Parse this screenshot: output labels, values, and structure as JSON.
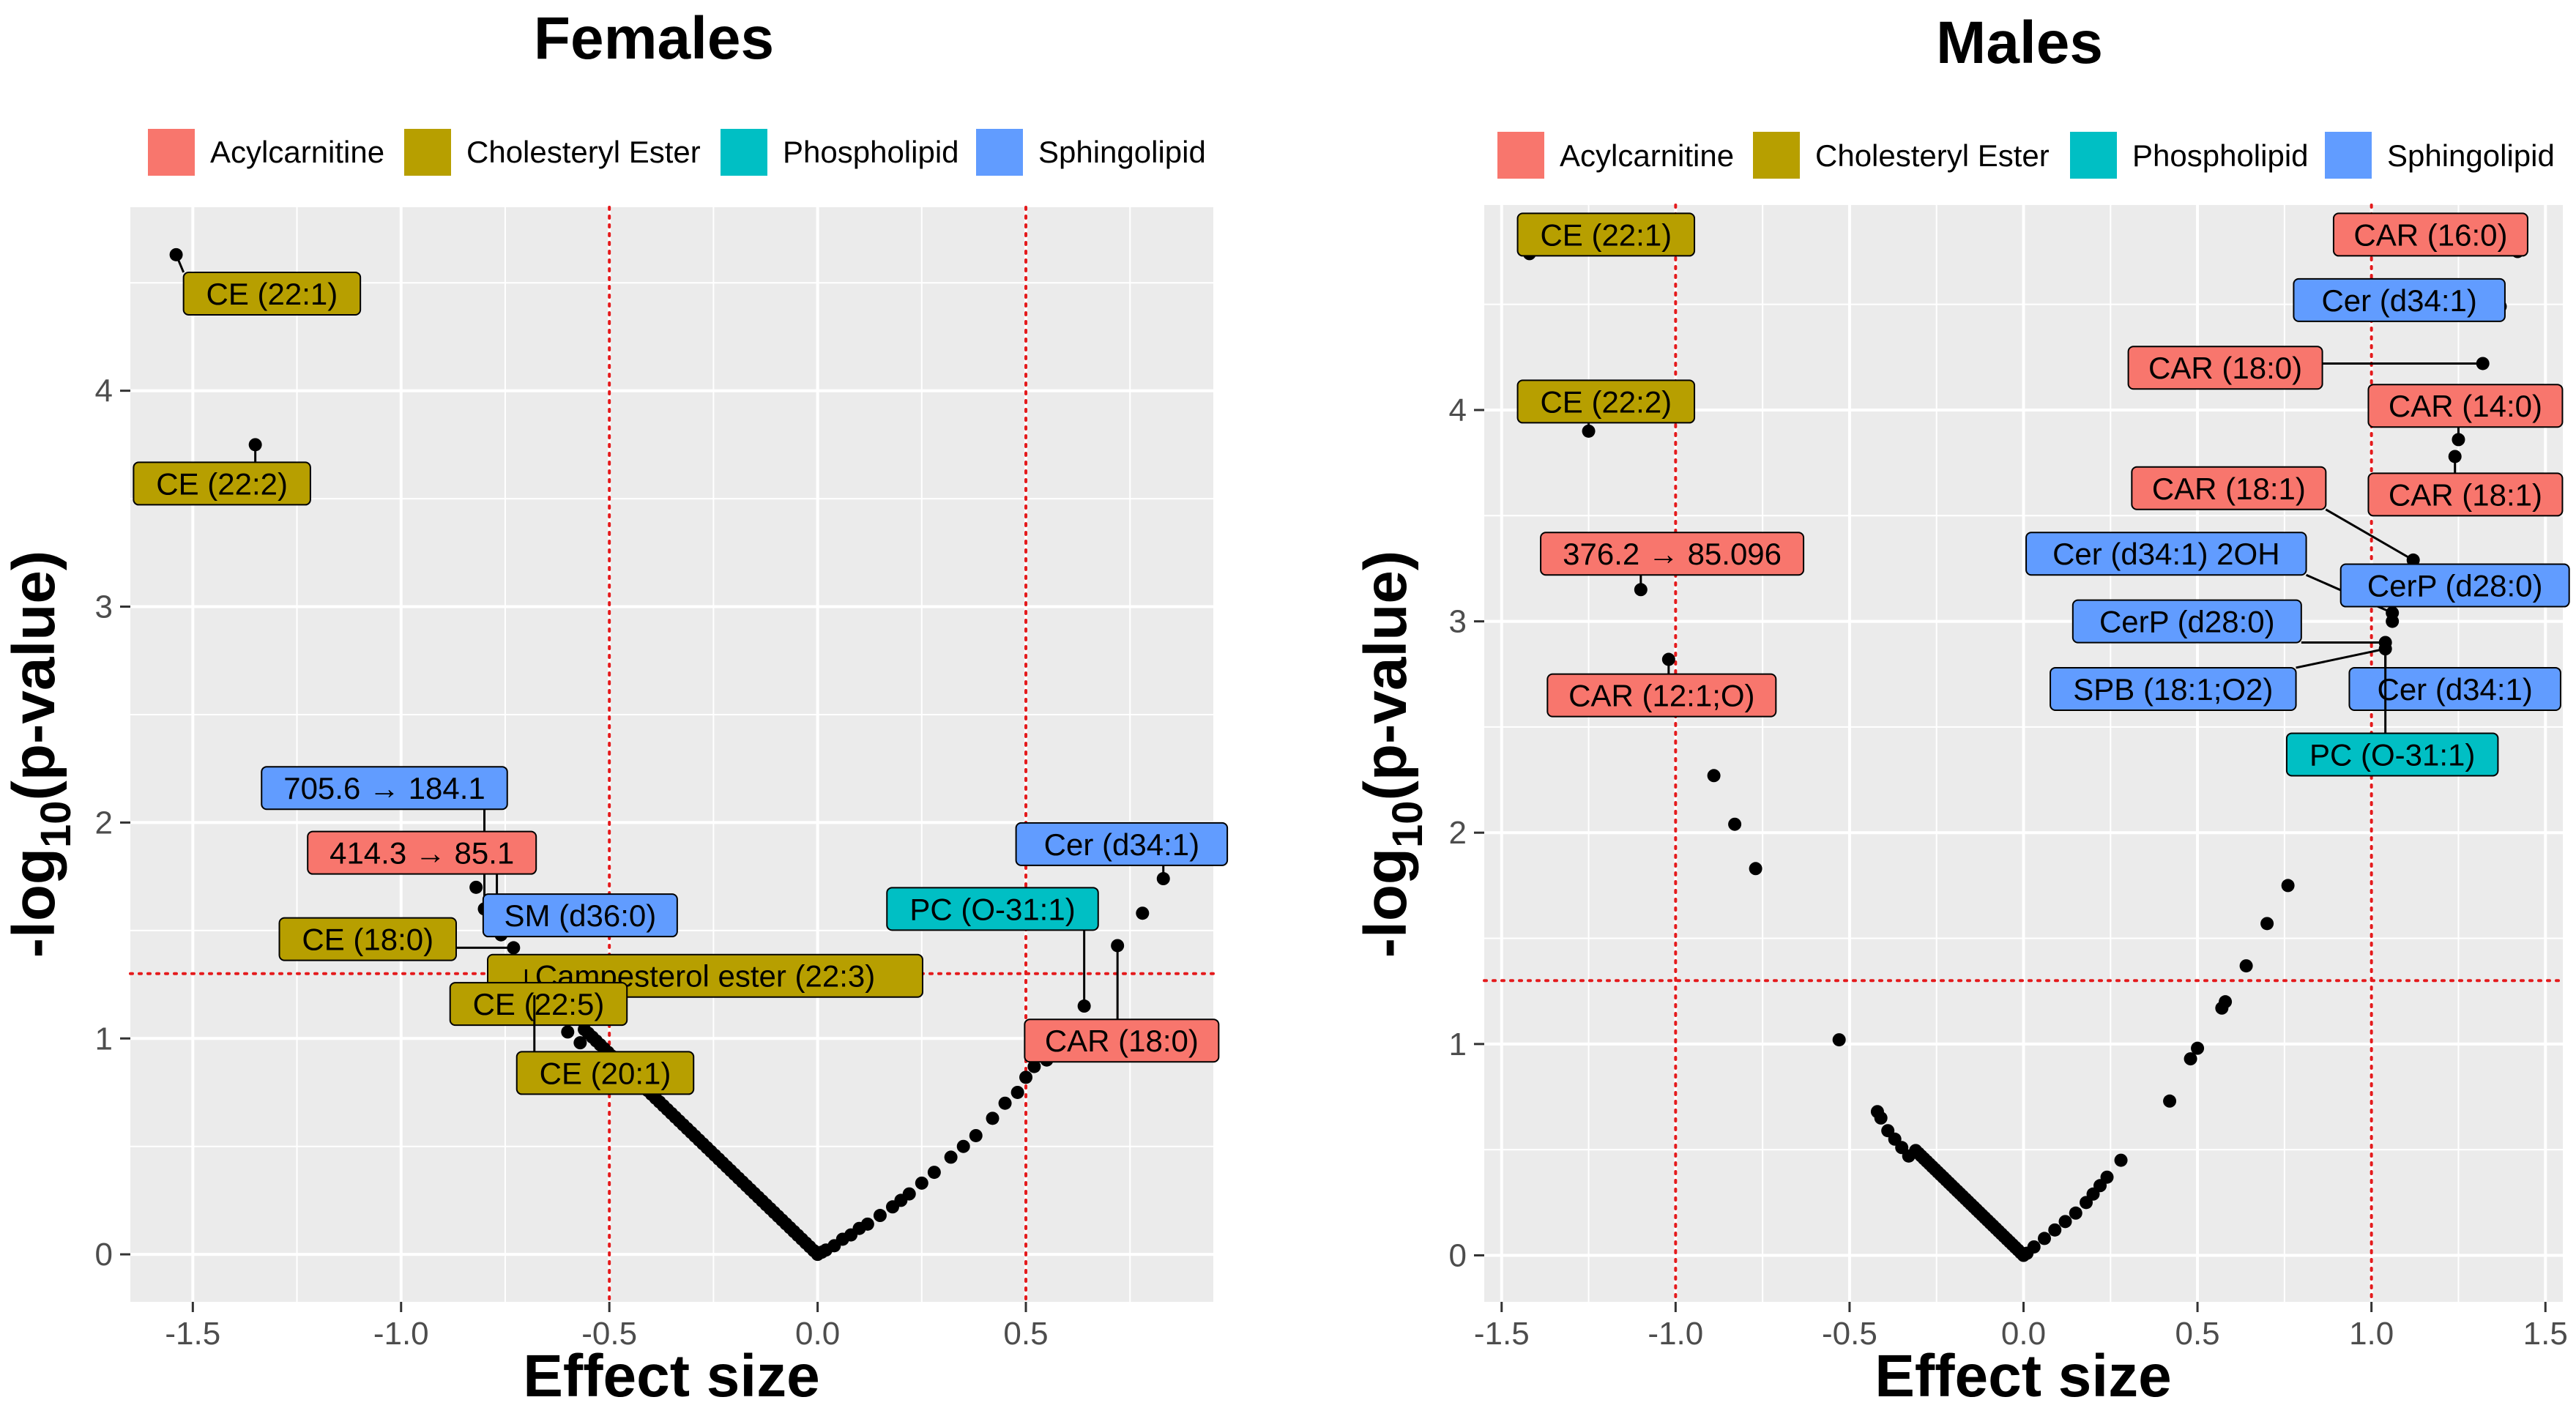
{
  "colors": {
    "Acylcarnitine": "#F8766D",
    "Cholesteryl Ester": "#B79F00",
    "Phospholipid": "#00BFC4",
    "Sphingolipid": "#619CFF",
    "threshold": "#E41A1C",
    "panel": "#EBEBEB",
    "grid": "#FFFFFF",
    "point": "#000000"
  },
  "chart_data": [
    {
      "type": "scatter",
      "title": "Females",
      "xlabel": "Effect size",
      "ylabel": "-log10(p-value)",
      "ylabel_main": "-log",
      "ylabel_sub": "10",
      "ylabel_tail": "(p-value)",
      "xlim": [
        -1.65,
        0.95
      ],
      "ylim": [
        -0.22,
        4.85
      ],
      "xticks": [
        -1.5,
        -1.0,
        -0.5,
        0.0,
        0.5
      ],
      "xtick_labels": [
        "-1.5",
        "-1.0",
        "-0.5",
        "0.0",
        "0.5"
      ],
      "yticks": [
        0,
        1,
        2,
        3,
        4
      ],
      "ytick_labels": [
        "0",
        "1",
        "2",
        "3",
        "4"
      ],
      "vlines": [
        -0.5,
        0.5
      ],
      "hline": 1.3,
      "legend": [
        "Acylcarnitine",
        "Cholesteryl Ester",
        "Phospholipid",
        "Sphingolipid"
      ],
      "points": [
        [
          -1.54,
          4.63
        ],
        [
          -1.35,
          3.75
        ],
        [
          -0.82,
          1.7
        ],
        [
          -0.8,
          1.6
        ],
        [
          -0.78,
          1.55
        ],
        [
          -0.77,
          1.52
        ],
        [
          -0.76,
          1.48
        ],
        [
          -0.73,
          1.42
        ],
        [
          -0.7,
          1.32
        ],
        [
          -0.68,
          1.2
        ],
        [
          -0.67,
          1.14
        ],
        [
          -0.63,
          1.1
        ],
        [
          -0.6,
          1.03
        ],
        [
          -0.57,
          0.98
        ],
        [
          0.64,
          1.15
        ],
        [
          0.72,
          1.43
        ],
        [
          0.78,
          1.58
        ],
        [
          0.83,
          1.74
        ],
        [
          0.5,
          0.82
        ],
        [
          0.52,
          0.87
        ],
        [
          0.55,
          0.9
        ],
        [
          0.58,
          0.95
        ],
        [
          0.6,
          0.98
        ],
        [
          0.42,
          0.63
        ],
        [
          0.45,
          0.7
        ],
        [
          0.48,
          0.75
        ],
        [
          0.38,
          0.55
        ],
        [
          0.35,
          0.5
        ],
        [
          0.32,
          0.45
        ],
        [
          0.28,
          0.38
        ],
        [
          0.25,
          0.33
        ],
        [
          0.22,
          0.28
        ],
        [
          0.2,
          0.25
        ],
        [
          0.18,
          0.22
        ],
        [
          0.15,
          0.18
        ],
        [
          0.12,
          0.14
        ],
        [
          0.1,
          0.12
        ],
        [
          0.08,
          0.09
        ],
        [
          0.06,
          0.07
        ],
        [
          0.04,
          0.04
        ],
        [
          0.02,
          0.02
        ],
        [
          0.01,
          0.01
        ]
      ],
      "dense_left": {
        "x0": -0.56,
        "x1": 0.0,
        "n": 60
      },
      "labels": [
        {
          "text": "CE (22:1)",
          "cls": "Cholesteryl Ester",
          "lx": -1.31,
          "ly": 4.45,
          "px": -1.54,
          "py": 4.63
        },
        {
          "text": "CE (22:2)",
          "cls": "Cholesteryl Ester",
          "lx": -1.43,
          "ly": 3.57,
          "px": -1.35,
          "py": 3.75
        },
        {
          "text": "705.6 → 184.1",
          "cls": "Sphingolipid",
          "lx": -1.04,
          "ly": 2.16,
          "px": -0.8,
          "py": 1.6
        },
        {
          "text": "414.3 → 85.1",
          "cls": "Acylcarnitine",
          "lx": -0.95,
          "ly": 1.86,
          "px": -0.77,
          "py": 1.52
        },
        {
          "text": "SM (d36:0)",
          "cls": "Sphingolipid",
          "lx": -0.57,
          "ly": 1.57,
          "px": -0.76,
          "py": 1.48
        },
        {
          "text": "CE (18:0)",
          "cls": "Cholesteryl Ester",
          "lx": -1.08,
          "ly": 1.46,
          "px": -0.73,
          "py": 1.42
        },
        {
          "text": "Campesterol ester (22:3)",
          "cls": "Cholesteryl Ester",
          "lx": -0.27,
          "ly": 1.29,
          "px": -0.73,
          "py": 1.42
        },
        {
          "text": "CE (22:5)",
          "cls": "Cholesteryl Ester",
          "lx": -0.67,
          "ly": 1.16,
          "px": -0.7,
          "py": 1.32
        },
        {
          "text": "CE (20:1)",
          "cls": "Cholesteryl Ester",
          "lx": -0.51,
          "ly": 0.84,
          "px": -0.68,
          "py": 1.2
        },
        {
          "text": "Cer (d34:1)",
          "cls": "Sphingolipid",
          "lx": 0.73,
          "ly": 1.9,
          "px": 0.83,
          "py": 1.74
        },
        {
          "text": "PC (O-31:1)",
          "cls": "Phospholipid",
          "lx": 0.42,
          "ly": 1.6,
          "px": 0.64,
          "py": 1.15
        },
        {
          "text": "CAR (18:0)",
          "cls": "Acylcarnitine",
          "lx": 0.73,
          "ly": 0.99,
          "px": 0.72,
          "py": 1.43
        }
      ]
    },
    {
      "type": "scatter",
      "title": "Males",
      "xlabel": "Effect size",
      "ylabel": "-log10(p-value)",
      "ylabel_main": "-log",
      "ylabel_sub": "10",
      "ylabel_tail": "(p-value)",
      "xlim": [
        -1.55,
        1.55
      ],
      "ylim": [
        -0.22,
        4.97
      ],
      "xticks": [
        -1.5,
        -1.0,
        -0.5,
        0.0,
        0.5,
        1.0,
        1.5
      ],
      "xtick_labels": [
        "-1.5",
        "-1.0",
        "-0.5",
        "0.0",
        "0.5",
        "1.0",
        "1.5"
      ],
      "yticks": [
        0,
        1,
        2,
        3,
        4
      ],
      "ytick_labels": [
        "0",
        "1",
        "2",
        "3",
        "4"
      ],
      "vlines": [
        -1.0,
        1.0
      ],
      "hline": 1.3,
      "legend": [
        "Acylcarnitine",
        "Cholesteryl Ester",
        "Phospholipid",
        "Sphingolipid"
      ],
      "points": [
        [
          -1.42,
          4.74
        ],
        [
          -1.25,
          3.9
        ],
        [
          -1.1,
          3.15
        ],
        [
          -1.02,
          2.82
        ],
        [
          -0.89,
          2.27
        ],
        [
          -0.83,
          2.04
        ],
        [
          -0.77,
          1.83
        ],
        [
          -0.53,
          1.02
        ],
        [
          -0.42,
          0.68
        ],
        [
          -0.41,
          0.65
        ],
        [
          -0.39,
          0.59
        ],
        [
          -0.37,
          0.55
        ],
        [
          -0.35,
          0.51
        ],
        [
          -0.33,
          0.47
        ],
        [
          1.42,
          4.75
        ],
        [
          1.37,
          4.49
        ],
        [
          1.32,
          4.22
        ],
        [
          1.25,
          3.86
        ],
        [
          1.24,
          3.78
        ],
        [
          1.12,
          3.29
        ],
        [
          1.06,
          3.04
        ],
        [
          1.06,
          3.0
        ],
        [
          1.04,
          2.9
        ],
        [
          1.04,
          2.87
        ],
        [
          0.76,
          1.75
        ],
        [
          0.7,
          1.57
        ],
        [
          0.64,
          1.37
        ],
        [
          0.58,
          1.2
        ],
        [
          0.57,
          1.17
        ],
        [
          0.5,
          0.98
        ],
        [
          0.48,
          0.93
        ],
        [
          0.42,
          0.73
        ],
        [
          0.28,
          0.45
        ],
        [
          0.24,
          0.37
        ],
        [
          0.22,
          0.33
        ],
        [
          0.2,
          0.29
        ],
        [
          0.18,
          0.25
        ],
        [
          0.15,
          0.2
        ],
        [
          0.12,
          0.16
        ],
        [
          0.09,
          0.12
        ],
        [
          0.06,
          0.08
        ],
        [
          0.03,
          0.04
        ],
        [
          0.01,
          0.01
        ]
      ],
      "dense_left": {
        "x0": -0.31,
        "x1": 0.0,
        "n": 40
      },
      "labels": [
        {
          "text": "CE (22:1)",
          "cls": "Cholesteryl Ester",
          "lx": -1.2,
          "ly": 4.83,
          "px": -1.42,
          "py": 4.74
        },
        {
          "text": "CE (22:2)",
          "cls": "Cholesteryl Ester",
          "lx": -1.2,
          "ly": 4.04,
          "px": -1.25,
          "py": 3.9
        },
        {
          "text": "376.2 → 85.096",
          "cls": "Acylcarnitine",
          "lx": -1.01,
          "ly": 3.32,
          "px": -1.1,
          "py": 3.15
        },
        {
          "text": "CAR (12:1;O)",
          "cls": "Acylcarnitine",
          "lx": -1.04,
          "ly": 2.65,
          "px": -1.02,
          "py": 2.82
        },
        {
          "text": "CAR (16:0)",
          "cls": "Acylcarnitine",
          "lx": 1.17,
          "ly": 4.83,
          "px": 1.42,
          "py": 4.75
        },
        {
          "text": "Cer (d34:1)",
          "cls": "Sphingolipid",
          "lx": 1.08,
          "ly": 4.52,
          "px": 1.37,
          "py": 4.49
        },
        {
          "text": "CAR (18:0)",
          "cls": "Acylcarnitine",
          "lx": 0.58,
          "ly": 4.2,
          "px": 1.32,
          "py": 4.22
        },
        {
          "text": "CAR (14:0)",
          "cls": "Acylcarnitine",
          "lx": 1.27,
          "ly": 4.02,
          "px": 1.25,
          "py": 3.86
        },
        {
          "text": "CAR (18:1)",
          "cls": "Acylcarnitine",
          "lx": 0.59,
          "ly": 3.63,
          "px": 1.12,
          "py": 3.29
        },
        {
          "text": "CAR (18:1)",
          "cls": "Acylcarnitine",
          "lx": 1.27,
          "ly": 3.6,
          "px": 1.24,
          "py": 3.78
        },
        {
          "text": "Cer (d34:1) 2OH",
          "cls": "Sphingolipid",
          "lx": 0.41,
          "ly": 3.32,
          "px": 1.06,
          "py": 3.04
        },
        {
          "text": "CerP (d28:0)",
          "cls": "Sphingolipid",
          "lx": 1.24,
          "ly": 3.17,
          "px": 1.06,
          "py": 3.0
        },
        {
          "text": "CerP (d28:0)",
          "cls": "Sphingolipid",
          "lx": 0.47,
          "ly": 3.0,
          "px": 1.04,
          "py": 2.9
        },
        {
          "text": "SPB (18:1;O2)",
          "cls": "Sphingolipid",
          "lx": 0.43,
          "ly": 2.68,
          "px": 1.04,
          "py": 2.87
        },
        {
          "text": "Cer (d34:1)",
          "cls": "Sphingolipid",
          "lx": 1.24,
          "ly": 2.68,
          "px": 1.04,
          "py": 2.9
        },
        {
          "text": "PC (O-31:1)",
          "cls": "Phospholipid",
          "lx": 1.06,
          "ly": 2.37,
          "px": 1.04,
          "py": 2.9
        }
      ]
    }
  ]
}
